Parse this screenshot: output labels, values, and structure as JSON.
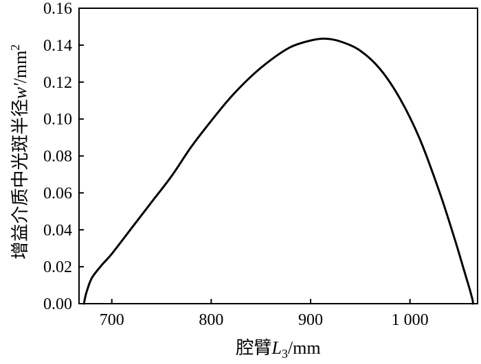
{
  "chart_data": {
    "type": "line",
    "xlabel": {
      "prefix": "腔臂",
      "var": "L",
      "sub": "3",
      "unit": "/mm"
    },
    "ylabel": {
      "prefix": "增益介质中光斑半径",
      "var": "w′",
      "unit": "/mm",
      "sup": "2"
    },
    "xlim": [
      667,
      1068
    ],
    "ylim": [
      0,
      0.16
    ],
    "x_ticks": [
      700,
      800,
      900,
      1000
    ],
    "x_tick_labels": [
      "700",
      "800",
      "900",
      "1 000"
    ],
    "y_ticks": [
      0,
      0.02,
      0.04,
      0.06,
      0.08,
      0.1,
      0.12,
      0.14,
      0.16
    ],
    "y_tick_labels": [
      "0.00",
      "0.02",
      "0.04",
      "0.06",
      "0.08",
      "0.10",
      "0.12",
      "0.14",
      "0.16"
    ],
    "grid": false,
    "series": [
      {
        "color": "#000000",
        "x": [
          672,
          673,
          675,
          680,
          690,
          700,
          720,
          740,
          760,
          780,
          800,
          820,
          840,
          860,
          880,
          900,
          915,
          930,
          950,
          970,
          990,
          1010,
          1030,
          1045,
          1055,
          1060,
          1062,
          1063,
          1063.5
        ],
        "y": [
          0.0,
          0.003,
          0.007,
          0.014,
          0.021,
          0.027,
          0.041,
          0.055,
          0.069,
          0.085,
          0.099,
          0.112,
          0.123,
          0.132,
          0.139,
          0.1425,
          0.1435,
          0.142,
          0.137,
          0.127,
          0.111,
          0.089,
          0.06,
          0.035,
          0.017,
          0.008,
          0.004,
          0.002,
          0.0
        ]
      }
    ]
  }
}
